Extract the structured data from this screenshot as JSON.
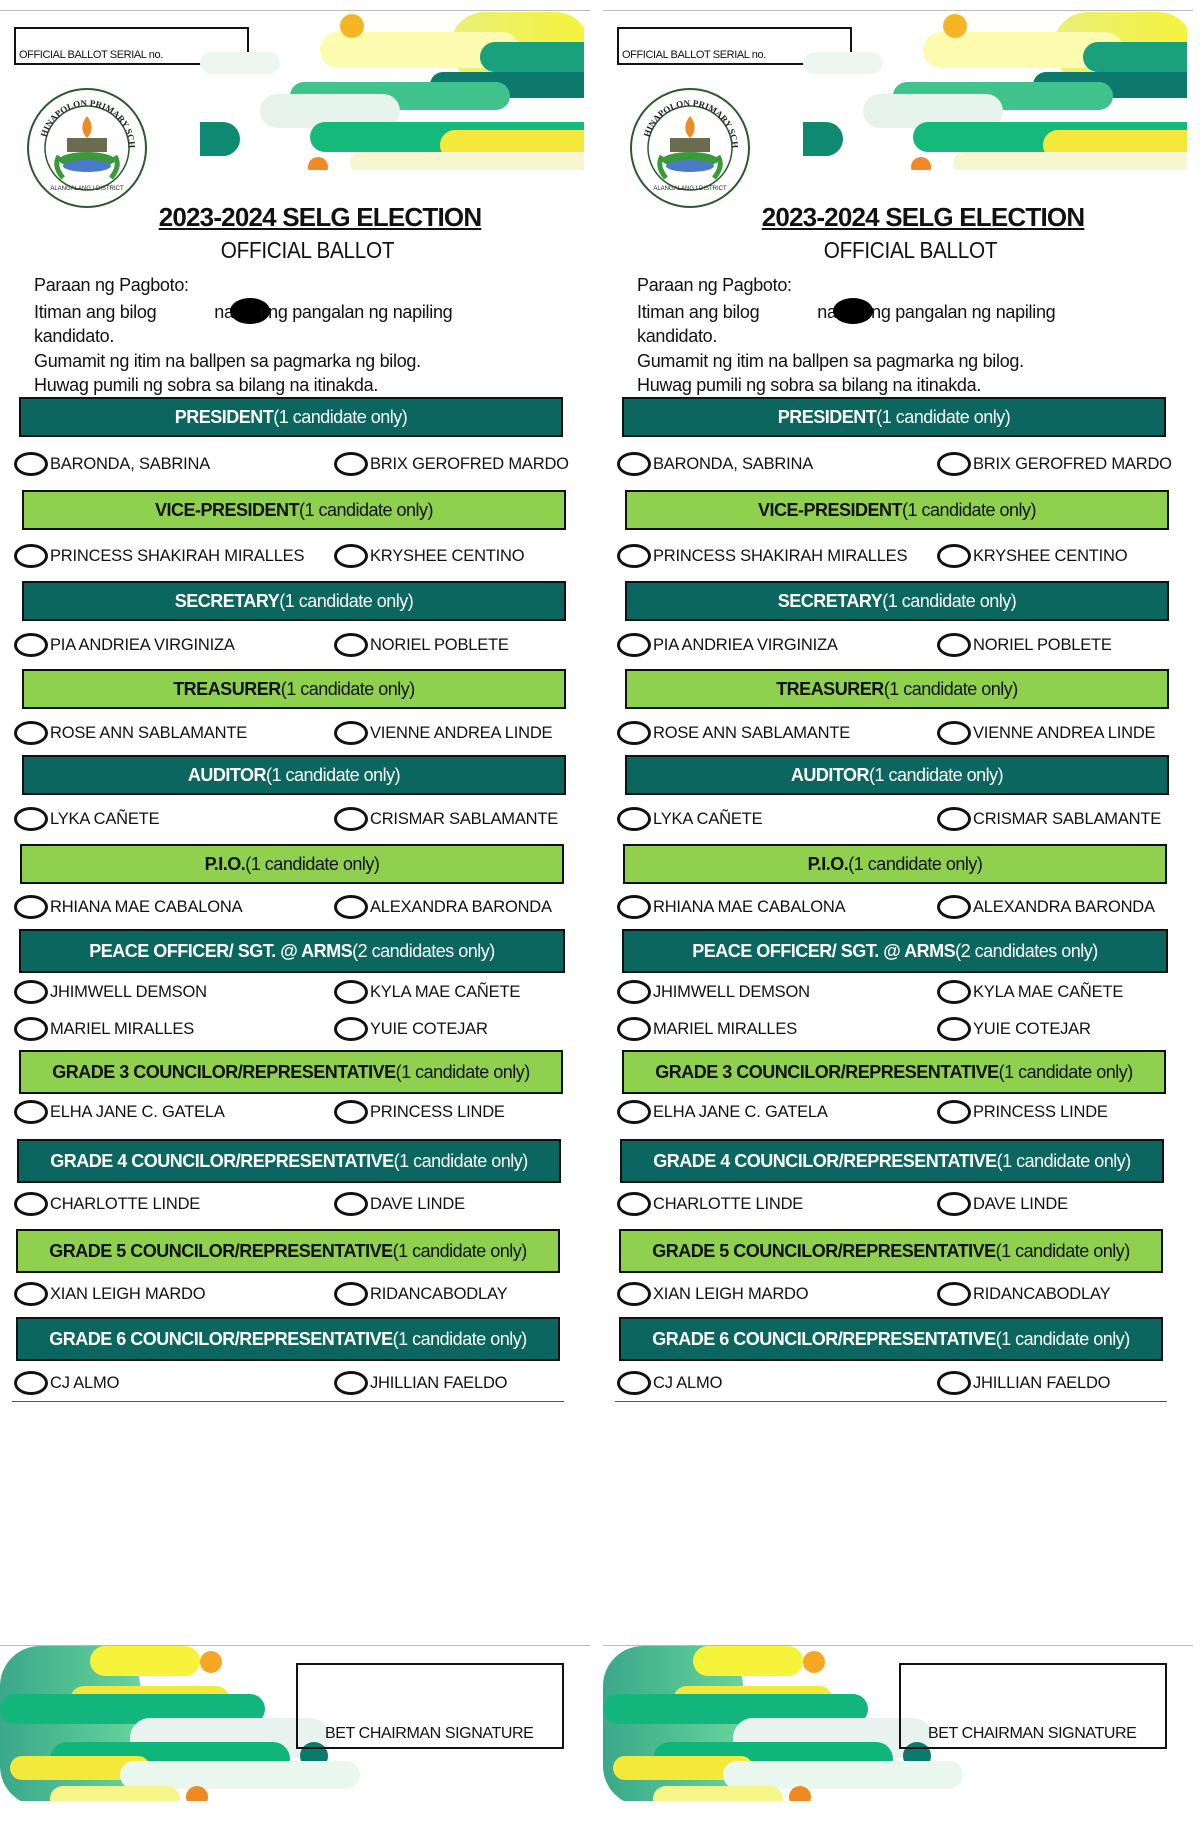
{
  "ballot": {
    "serial_label": "OFFICIAL BALLOT SERIAL no.",
    "logo_text": "HINAPOLON PRIMARY SCHOOL · ALANGALANG I DISTRICT",
    "title": "2023-2024 SELG ELECTION",
    "subtitle": "OFFICIAL BALLOT",
    "instructions": {
      "line1": "Paraan ng Pagboto:",
      "line2a": "Itiman ang bilog",
      "line2b": "na",
      "line2c": "i ng pangalan ng napiling",
      "line3": "kandidato.",
      "line4": "Gumamit ng itim na ballpen sa pagmarka ng bilog.",
      "line5": "Huwag pumili ng sobra sa bilang na itinakda."
    },
    "sections": [
      {
        "position": "PRESIDENT",
        "limit": " (1 candidate only)",
        "style": "dark",
        "candidates": [
          "BARONDA, SABRINA",
          "BRIX GEROFRED MARDO"
        ]
      },
      {
        "position": "VICE-PRESIDENT",
        "limit": " (1 candidate only)",
        "style": "light",
        "candidates": [
          "PRINCESS SHAKIRAH MIRALLES",
          "KRYSHEE CENTINO"
        ]
      },
      {
        "position": "SECRETARY",
        "limit": " (1 candidate only)",
        "style": "dark",
        "candidates": [
          "PIA ANDRIEA VIRGINIZA",
          "NORIEL POBLETE"
        ]
      },
      {
        "position": "TREASURER",
        "limit": " (1 candidate only)",
        "style": "light",
        "candidates": [
          "ROSE ANN SABLAMANTE",
          "VIENNE ANDREA LINDE"
        ]
      },
      {
        "position": "AUDITOR",
        "limit": " (1 candidate only)",
        "style": "dark",
        "candidates": [
          "LYKA CAÑETE",
          "CRISMAR SABLAMANTE"
        ]
      },
      {
        "position": "P.I.O.",
        "limit": " (1 candidate only)",
        "style": "light",
        "candidates": [
          "RHIANA MAE CABALONA",
          "ALEXANDRA BARONDA"
        ]
      },
      {
        "position": "PEACE OFFICER/ SGT. @ ARMS",
        "limit": " (2 candidates only)",
        "style": "dark",
        "candidates": [
          "JHIMWELL DEMSON",
          "KYLA MAE CAÑETE",
          "MARIEL MIRALLES",
          "YUIE COTEJAR"
        ]
      },
      {
        "position": "GRADE 3 COUNCILOR/REPRESENTATIVE",
        "limit": "(1 candidate only)",
        "style": "light",
        "candidates": [
          "ELHA JANE C. GATELA",
          "PRINCESS LINDE"
        ]
      },
      {
        "position": "GRADE 4 COUNCILOR/REPRESENTATIVE",
        "limit": "(1 candidate only)",
        "style": "dark",
        "candidates": [
          "CHARLOTTE LINDE",
          "DAVE LINDE"
        ]
      },
      {
        "position": "GRADE 5 COUNCILOR/REPRESENTATIVE",
        "limit": "(1 candidate only)",
        "style": "light",
        "candidates": [
          "XIAN LEIGH MARDO",
          "RIDANCABODLAY"
        ]
      },
      {
        "position": "GRADE 6 COUNCILOR/REPRESENTATIVE",
        "limit": "(1 candidate only)",
        "style": "dark",
        "candidates": [
          "CJ ALMO",
          "JHILLIAN FAELDO"
        ]
      }
    ],
    "signature_label": "BET CHAIRMAN SIGNATURE"
  },
  "colors": {
    "dark_bar": "#0a665f",
    "light_bar": "#8fd14f"
  }
}
